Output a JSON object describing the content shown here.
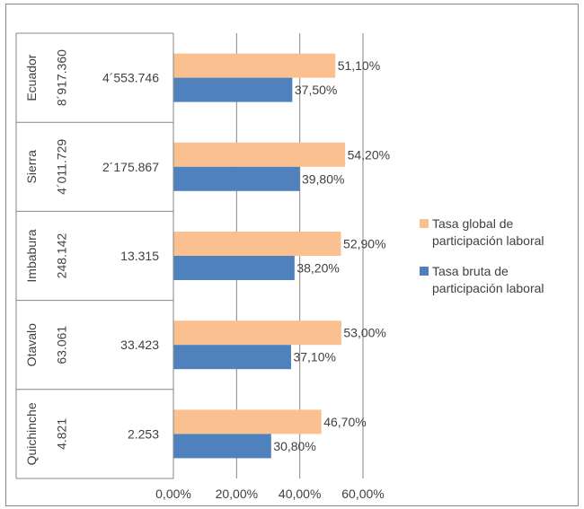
{
  "chart_data": {
    "type": "bar",
    "orientation": "horizontal",
    "categories": [
      "Ecuador",
      "Sierra",
      "Imbabura",
      "Otavalo",
      "Quichinche"
    ],
    "table_columns": [
      [
        "8´917.360",
        "4´011.729",
        "248.142",
        "63.061",
        "4.821"
      ],
      [
        "4´553.746",
        "2´175.867",
        "13.315",
        "33.423",
        "2.253"
      ]
    ],
    "series": [
      {
        "name": "Tasa global de participación laboral",
        "color": "#FAC090",
        "values": [
          51.1,
          54.2,
          52.9,
          53.0,
          46.7
        ],
        "labels": [
          "51,10%",
          "54,20%",
          "52,90%",
          "53,00%",
          "46,70%"
        ]
      },
      {
        "name": "Tasa bruta de participación laboral",
        "color": "#4F81BD",
        "values": [
          37.5,
          39.8,
          38.2,
          37.1,
          30.8
        ],
        "labels": [
          "37,50%",
          "39,80%",
          "38,20%",
          "37,10%",
          "30,80%"
        ]
      }
    ],
    "xlim": [
      0,
      60
    ],
    "xticks": [
      "0,00%",
      "20,00%",
      "40,00%",
      "60,00%"
    ],
    "grid": true,
    "legend_position": "right",
    "legend_lines": [
      [
        "Tasa global de",
        "participación laboral"
      ],
      [
        "Tasa bruta de",
        "participación laboral"
      ]
    ]
  }
}
